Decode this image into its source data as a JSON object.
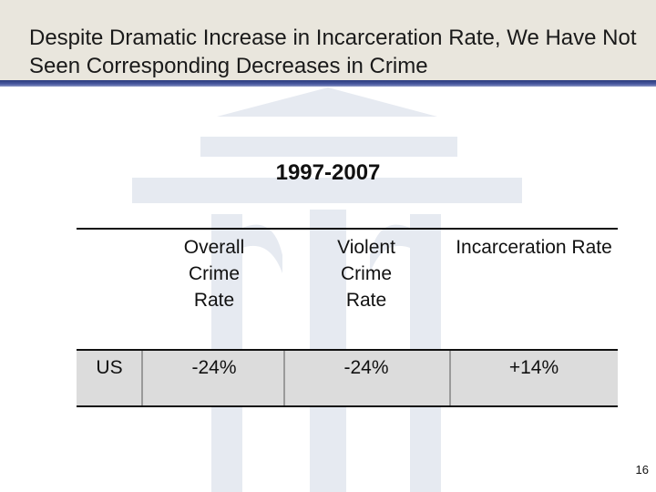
{
  "slide": {
    "title": "Despite Dramatic Increase in Incarceration Rate, We Have Not Seen Corresponding Decreases in Crime",
    "subtitle": "1997-2007",
    "page_number": "16"
  },
  "table": {
    "headers": [
      "",
      "Overall Crime Rate",
      "Violent Crime Rate",
      "Incarceration Rate"
    ],
    "rows": [
      {
        "label": "US",
        "overall_crime": "-24%",
        "violent_crime": "-24%",
        "incarceration": "+14%"
      }
    ]
  },
  "colors": {
    "title_band": "#e9e6dd",
    "title_rule": "#2a3a7a",
    "row_band": "#dcdcdc",
    "watermark": "#e6eaf1"
  }
}
